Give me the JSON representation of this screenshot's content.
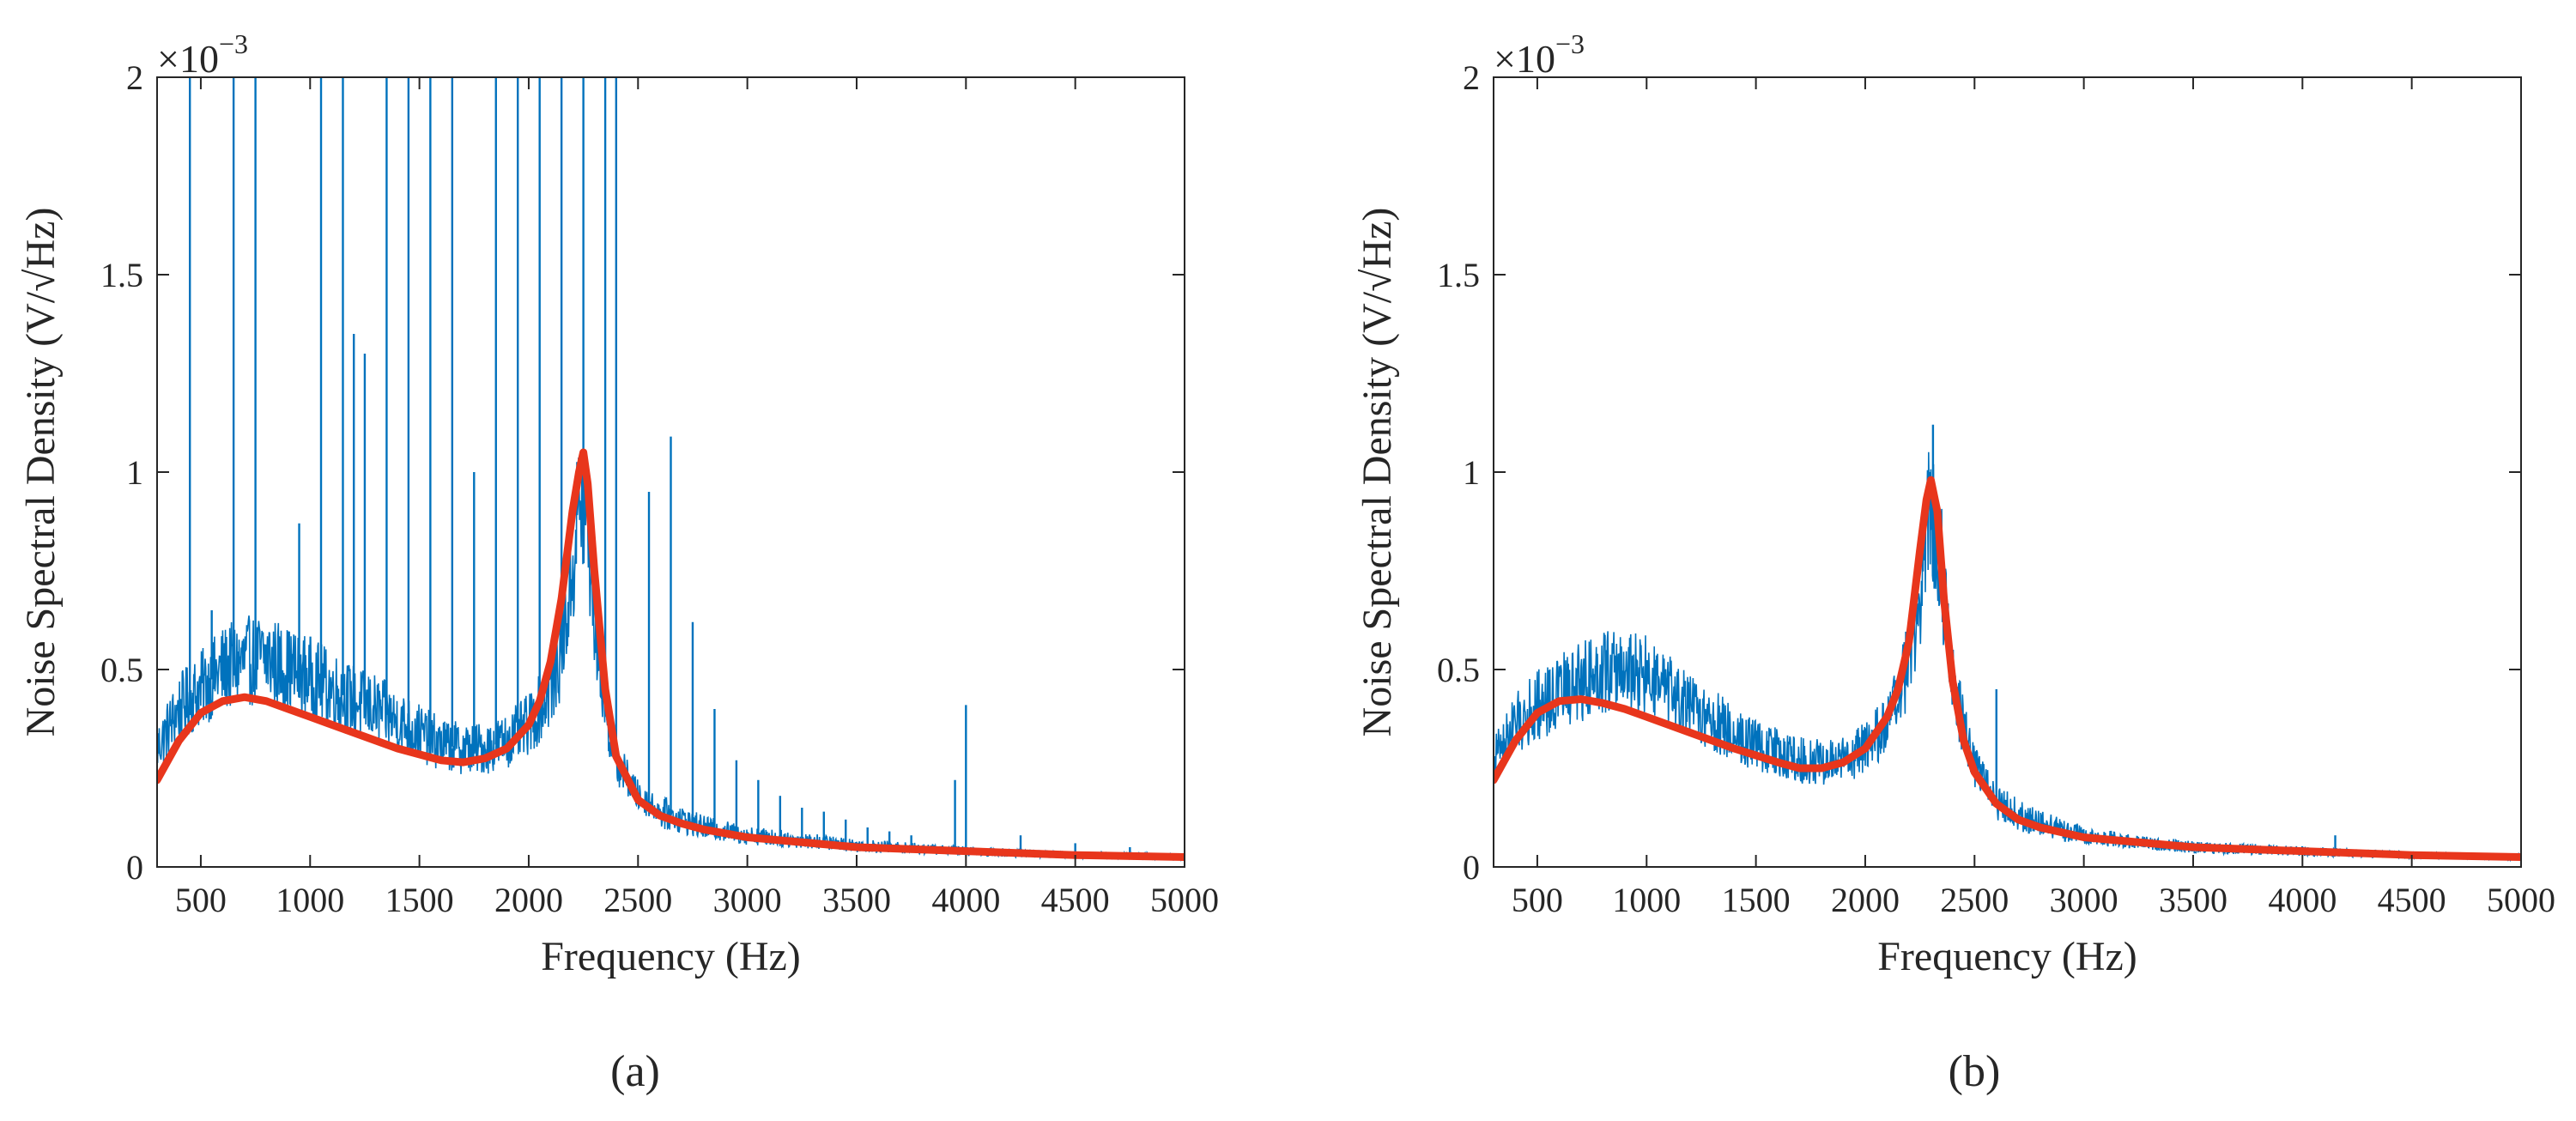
{
  "chart_data": [
    {
      "type": "line",
      "panel_label": "(a)",
      "xlabel": "Frequency (Hz)",
      "ylabel": "Noise Spectral Density (V/√Hz)",
      "y_exponent": {
        "base": "×10",
        "power": "−3"
      },
      "xlim": [
        300,
        5000
      ],
      "ylim": [
        0,
        2
      ],
      "xticks": [
        500,
        1000,
        1500,
        2000,
        2500,
        3000,
        3500,
        4000,
        4500,
        5000
      ],
      "xtick_labels": [
        "500",
        "1000",
        "1500",
        "2000",
        "2500",
        "3000",
        "3500",
        "4000",
        "4500",
        "5000"
      ],
      "yticks": [
        0,
        0.5,
        1,
        1.5,
        2
      ],
      "ytick_labels": [
        "0",
        "0.5",
        "1",
        "1.5",
        "2"
      ],
      "grid": false,
      "series": [
        {
          "color": "#0072BD",
          "style": "measured spectrum (dense noise)",
          "x": [
            300,
            400,
            500,
            600,
            700,
            800,
            900,
            1000,
            1100,
            1200,
            1300,
            1400,
            1500,
            1600,
            1700,
            1800,
            1900,
            2000,
            2050,
            2100,
            2150,
            2200,
            2230,
            2260,
            2300,
            2350,
            2400,
            2500,
            2600,
            2700,
            2800,
            3000,
            3200,
            3500,
            4000,
            4500,
            5000
          ],
          "y": [
            0.3,
            0.4,
            0.45,
            0.5,
            0.52,
            0.53,
            0.5,
            0.48,
            0.45,
            0.42,
            0.4,
            0.37,
            0.34,
            0.31,
            0.3,
            0.3,
            0.32,
            0.36,
            0.4,
            0.45,
            0.55,
            0.75,
            0.92,
            0.9,
            0.65,
            0.4,
            0.27,
            0.18,
            0.14,
            0.12,
            0.1,
            0.08,
            0.07,
            0.055,
            0.04,
            0.03,
            0.025
          ],
          "spikes": [
            {
              "x": 450,
              "y": 2.0
            },
            {
              "x": 550,
              "y": 0.65
            },
            {
              "x": 650,
              "y": 2.0
            },
            {
              "x": 750,
              "y": 2.0
            },
            {
              "x": 950,
              "y": 0.87
            },
            {
              "x": 1050,
              "y": 2.0
            },
            {
              "x": 1150,
              "y": 2.0
            },
            {
              "x": 1200,
              "y": 1.35
            },
            {
              "x": 1250,
              "y": 1.3
            },
            {
              "x": 1350,
              "y": 2.0
            },
            {
              "x": 1450,
              "y": 2.0
            },
            {
              "x": 1550,
              "y": 2.0
            },
            {
              "x": 1650,
              "y": 2.0
            },
            {
              "x": 1750,
              "y": 1.0
            },
            {
              "x": 1850,
              "y": 2.0
            },
            {
              "x": 1950,
              "y": 2.0
            },
            {
              "x": 2050,
              "y": 2.0
            },
            {
              "x": 2150,
              "y": 2.0
            },
            {
              "x": 2250,
              "y": 2.0
            },
            {
              "x": 2350,
              "y": 2.0
            },
            {
              "x": 2400,
              "y": 2.0
            },
            {
              "x": 2550,
              "y": 0.95
            },
            {
              "x": 2650,
              "y": 1.09
            },
            {
              "x": 2750,
              "y": 0.62
            },
            {
              "x": 2850,
              "y": 0.4
            },
            {
              "x": 2950,
              "y": 0.27
            },
            {
              "x": 3050,
              "y": 0.22
            },
            {
              "x": 3150,
              "y": 0.18
            },
            {
              "x": 3250,
              "y": 0.15
            },
            {
              "x": 3350,
              "y": 0.14
            },
            {
              "x": 3450,
              "y": 0.12
            },
            {
              "x": 3550,
              "y": 0.1
            },
            {
              "x": 3650,
              "y": 0.09
            },
            {
              "x": 3750,
              "y": 0.08
            },
            {
              "x": 3950,
              "y": 0.22
            },
            {
              "x": 4000,
              "y": 0.41
            },
            {
              "x": 4250,
              "y": 0.08
            },
            {
              "x": 4500,
              "y": 0.06
            },
            {
              "x": 4750,
              "y": 0.05
            }
          ]
        },
        {
          "color": "#E8361C",
          "style": "fitted curve (thick)",
          "x": [
            300,
            400,
            500,
            600,
            700,
            800,
            900,
            1000,
            1200,
            1400,
            1500,
            1600,
            1700,
            1800,
            1900,
            2000,
            2050,
            2100,
            2150,
            2200,
            2230,
            2250,
            2270,
            2300,
            2350,
            2400,
            2500,
            2600,
            2700,
            2800,
            3000,
            3200,
            3500,
            4000,
            4500,
            5000
          ],
          "y": [
            0.22,
            0.32,
            0.39,
            0.42,
            0.43,
            0.42,
            0.4,
            0.38,
            0.34,
            0.3,
            0.285,
            0.27,
            0.265,
            0.275,
            0.3,
            0.36,
            0.42,
            0.52,
            0.68,
            0.9,
            1.0,
            1.05,
            0.97,
            0.75,
            0.45,
            0.28,
            0.17,
            0.13,
            0.11,
            0.095,
            0.075,
            0.065,
            0.05,
            0.04,
            0.03,
            0.025
          ]
        }
      ]
    },
    {
      "type": "line",
      "panel_label": "(b)",
      "xlabel": "Frequency (Hz)",
      "ylabel": "Noise Spectral Density (V/√Hz)",
      "y_exponent": {
        "base": "×10",
        "power": "−3"
      },
      "xlim": [
        300,
        5000
      ],
      "ylim": [
        0,
        2
      ],
      "xticks": [
        500,
        1000,
        1500,
        2000,
        2500,
        3000,
        3500,
        4000,
        4500,
        5000
      ],
      "xtick_labels": [
        "500",
        "1000",
        "1500",
        "2000",
        "2500",
        "3000",
        "3500",
        "4000",
        "4500",
        "5000"
      ],
      "yticks": [
        0,
        0.5,
        1,
        1.5,
        2
      ],
      "ytick_labels": [
        "0",
        "0.5",
        "1",
        "1.5",
        "2"
      ],
      "grid": false,
      "series": [
        {
          "color": "#0072BD",
          "style": "measured spectrum (dense noise)",
          "x": [
            300,
            400,
            500,
            600,
            700,
            800,
            900,
            1000,
            1100,
            1200,
            1300,
            1400,
            1500,
            1600,
            1700,
            1800,
            1900,
            2000,
            2100,
            2150,
            2200,
            2250,
            2280,
            2300,
            2330,
            2360,
            2400,
            2450,
            2500,
            2600,
            2700,
            2800,
            3000,
            3200,
            3500,
            4000,
            4500,
            5000
          ],
          "y": [
            0.28,
            0.36,
            0.41,
            0.44,
            0.47,
            0.5,
            0.5,
            0.48,
            0.44,
            0.4,
            0.37,
            0.34,
            0.31,
            0.29,
            0.27,
            0.265,
            0.27,
            0.3,
            0.36,
            0.42,
            0.52,
            0.68,
            0.85,
            0.92,
            0.85,
            0.7,
            0.48,
            0.35,
            0.26,
            0.17,
            0.13,
            0.11,
            0.08,
            0.065,
            0.05,
            0.04,
            0.03,
            0.025
          ],
          "spikes": [
            {
              "x": 2310,
              "y": 1.12
            },
            {
              "x": 2600,
              "y": 0.45
            },
            {
              "x": 4150,
              "y": 0.08
            }
          ]
        },
        {
          "color": "#E8361C",
          "style": "fitted curve (thick)",
          "x": [
            300,
            400,
            500,
            600,
            700,
            800,
            900,
            1000,
            1200,
            1400,
            1600,
            1700,
            1800,
            1900,
            2000,
            2100,
            2150,
            2200,
            2250,
            2280,
            2300,
            2330,
            2360,
            2400,
            2450,
            2500,
            2600,
            2700,
            2800,
            3000,
            3200,
            3500,
            4000,
            4500,
            5000
          ],
          "y": [
            0.22,
            0.32,
            0.39,
            0.42,
            0.425,
            0.415,
            0.4,
            0.38,
            0.34,
            0.3,
            0.265,
            0.25,
            0.25,
            0.265,
            0.3,
            0.38,
            0.45,
            0.57,
            0.8,
            0.93,
            0.98,
            0.9,
            0.68,
            0.47,
            0.32,
            0.24,
            0.16,
            0.12,
            0.1,
            0.075,
            0.065,
            0.05,
            0.04,
            0.03,
            0.025
          ]
        }
      ]
    }
  ]
}
